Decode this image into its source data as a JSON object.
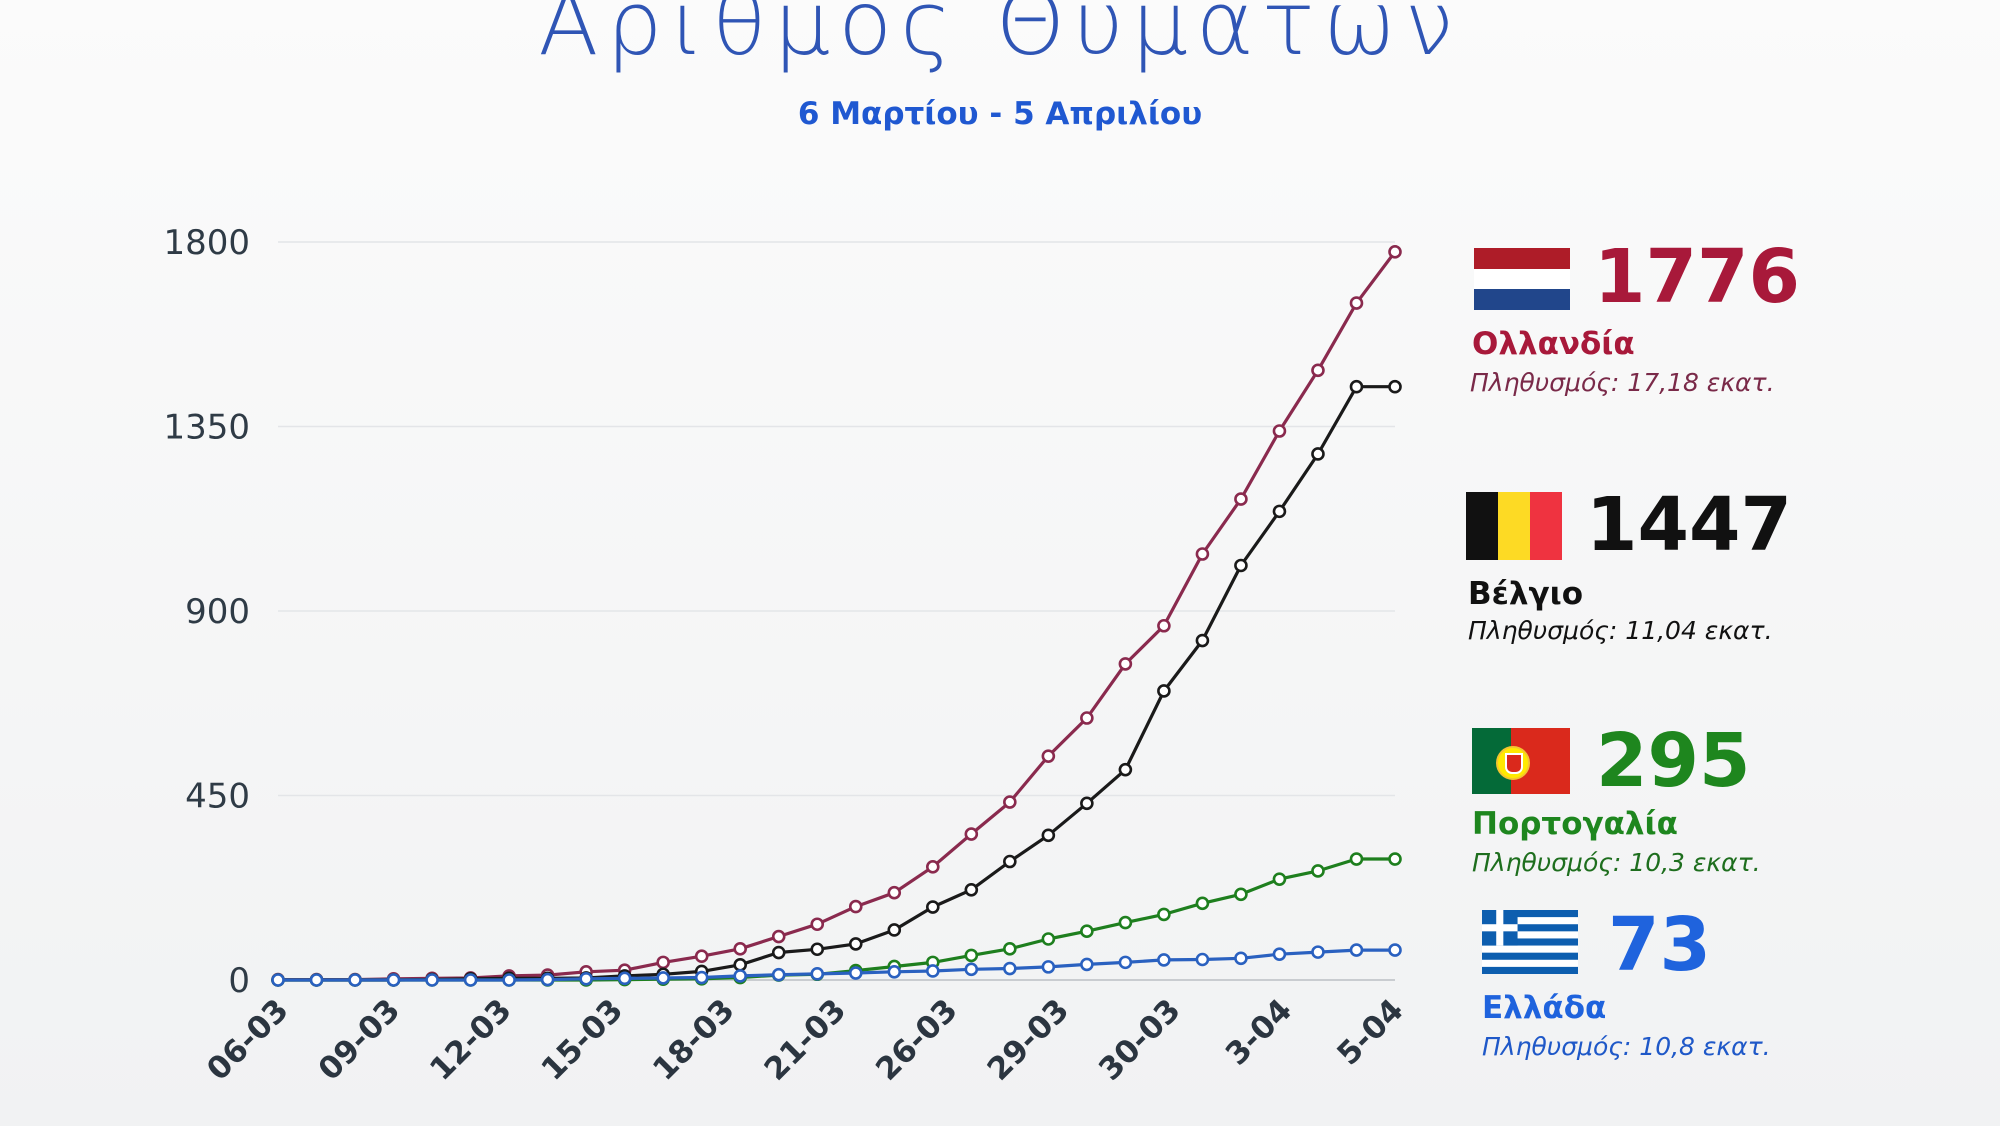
{
  "chart_data": {
    "type": "line",
    "title": "Αριθμός Θυμάτων",
    "subtitle": "6 Μαρτίου - 5 Απριλίου",
    "ylim": [
      0,
      1800
    ],
    "yticks": [
      0,
      450,
      900,
      1350,
      1800
    ],
    "grid": true,
    "legend_placement": "right",
    "xtick_labels": [
      "06-03",
      "09-03",
      "12-03",
      "15-03",
      "18-03",
      "21-03",
      "26-03",
      "29-03",
      "30-03",
      "3-04",
      "5-04"
    ],
    "series": [
      {
        "name": "Ολλανδία",
        "color": "#8a2a4e",
        "label_color": "#a8193a",
        "total": "1776",
        "population": "Πληθυσμός: 17,18 εκατ.",
        "flag": "netherlands-flag",
        "values": [
          1,
          1,
          1,
          3,
          4,
          5,
          10,
          12,
          20,
          24,
          43,
          58,
          76,
          106,
          136,
          179,
          213,
          276,
          356,
          434,
          546,
          639,
          771,
          864,
          1039,
          1173,
          1339,
          1487,
          1651,
          1776
        ]
      },
      {
        "name": "Βέλγιο",
        "color": "#1a1a1a",
        "label_color": "#111111",
        "total": "1447",
        "population": "Πληθυσμός: 11,04 εκατ.",
        "flag": "belgium-flag",
        "values": [
          0,
          0,
          0,
          0,
          1,
          3,
          4,
          4,
          5,
          10,
          14,
          21,
          37,
          67,
          75,
          88,
          122,
          178,
          220,
          289,
          353,
          431,
          513,
          705,
          828,
          1011,
          1143,
          1283,
          1447,
          1447
        ]
      },
      {
        "name": "Πορτογαλία",
        "color": "#1e7f1e",
        "label_color": "#1e861e",
        "total": "295",
        "population": "Πληθυσμός: 10,3 εκατ.",
        "flag": "portugal-flag",
        "values": [
          0,
          0,
          0,
          0,
          0,
          0,
          0,
          0,
          0,
          1,
          2,
          3,
          6,
          12,
          14,
          23,
          33,
          43,
          60,
          76,
          100,
          119,
          140,
          160,
          187,
          209,
          246,
          266,
          295,
          295
        ]
      },
      {
        "name": "Ελλάδα",
        "color": "#2a61c0",
        "label_color": "#1f63dd",
        "total": "73",
        "population": "Πληθυσμός: 10,8 εκατ.",
        "flag": "greece-flag",
        "values": [
          0,
          0,
          0,
          0,
          0,
          0,
          0,
          1,
          3,
          4,
          5,
          6,
          10,
          13,
          15,
          17,
          20,
          22,
          26,
          28,
          32,
          38,
          43,
          49,
          50,
          53,
          63,
          68,
          73,
          73
        ]
      }
    ]
  }
}
